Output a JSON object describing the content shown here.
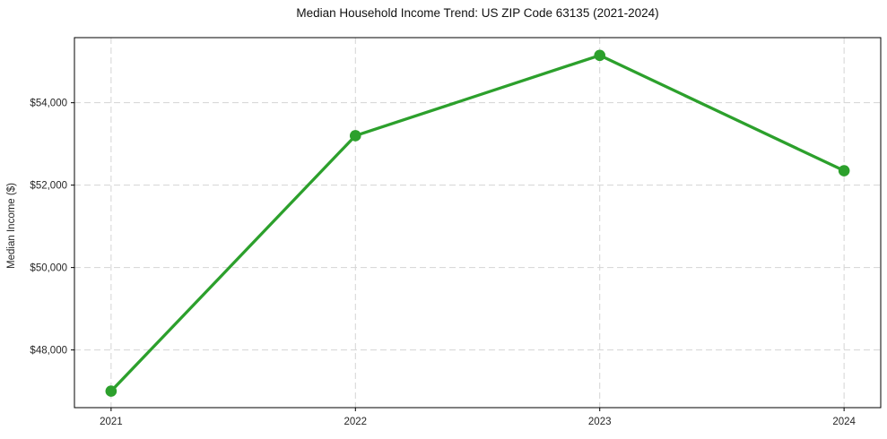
{
  "chart_data": {
    "type": "line",
    "title": "Median Household Income Trend: US ZIP Code 63135 (2021-2024)",
    "xlabel": "",
    "ylabel": "Median Income ($)",
    "categories": [
      "2021",
      "2022",
      "2023",
      "2024"
    ],
    "x": [
      2021,
      2022,
      2023,
      2024
    ],
    "values": [
      47000,
      53200,
      55150,
      52350
    ],
    "ytick_values": [
      48000,
      50000,
      52000,
      54000
    ],
    "ytick_labels": [
      "$48,000",
      "$50,000",
      "$52,000",
      "$54,000"
    ],
    "xlim": [
      2020.85,
      2024.15
    ],
    "ylim": [
      46600,
      55580
    ],
    "grid": true,
    "grid_style": "dashed",
    "legend_position": "none",
    "colors": {
      "line": "#2ca02c",
      "marker": "#2ca02c",
      "grid": "#d4d4d4",
      "spine": "#000000",
      "tick_text": "#262626",
      "title_text": "#111111",
      "background": "#ffffff"
    }
  }
}
